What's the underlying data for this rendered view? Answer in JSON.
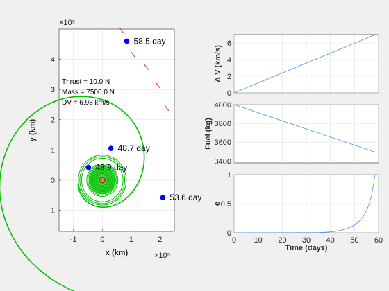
{
  "chart_data": [
    {
      "type": "line",
      "panel": "orbit",
      "xlabel": "x (km)",
      "ylabel": "y (km)",
      "xlim": [
        -1.5,
        2.5
      ],
      "ylim": [
        -1.7,
        5.0
      ],
      "xticks": [
        -1,
        0,
        1,
        2
      ],
      "yticks": [
        -1,
        0,
        1,
        2,
        3,
        4
      ],
      "x_exponent_label": "×10⁵",
      "y_exponent_label": "×10⁵",
      "grid": true,
      "colors": {
        "trajectory": "#00c000",
        "marker": "#0000ff",
        "thrust_arrow": "#ff0000",
        "planet": "#ff0000"
      },
      "info_text": [
        "Thrust = 10.0 N",
        "Mass = 7500.0 N",
        "DV = 6.98 km/s"
      ],
      "markers": [
        {
          "label": "58.5 day",
          "x": 0.85,
          "y": 4.6
        },
        {
          "label": "48.7 day",
          "x": 0.3,
          "y": 1.05
        },
        {
          "label": "43.9 day",
          "x": -0.48,
          "y": 0.42
        },
        {
          "label": "53.6 day",
          "x": 2.1,
          "y": -0.58
        }
      ]
    },
    {
      "type": "line",
      "panel": "delta-v",
      "ylabel": "Δ V (km/s)",
      "xlim": [
        0,
        60
      ],
      "ylim": [
        0,
        7
      ],
      "yticks": [
        0,
        2,
        4,
        6
      ],
      "grid": true,
      "x": [
        0,
        58.5
      ],
      "values": [
        0,
        6.98
      ]
    },
    {
      "type": "line",
      "panel": "fuel",
      "ylabel": "Fuel (kg)",
      "xlim": [
        0,
        60
      ],
      "ylim": [
        3380,
        4000
      ],
      "yticks": [
        3400,
        3600,
        3800,
        4000
      ],
      "grid": true,
      "x": [
        0,
        58.5
      ],
      "values": [
        4000,
        3495
      ]
    },
    {
      "type": "line",
      "panel": "eccentricity",
      "ylabel": "e",
      "xlabel": "Time (days)",
      "xlim": [
        0,
        60
      ],
      "ylim": [
        0,
        1
      ],
      "xticks": [
        0,
        10,
        20,
        30,
        40,
        50,
        60
      ],
      "yticks": [
        0,
        0.5,
        1
      ],
      "grid": true,
      "x": [
        0,
        30,
        35,
        38,
        40,
        42,
        44,
        46,
        48,
        50,
        52,
        54,
        55,
        56,
        57,
        58,
        58.5
      ],
      "values": [
        0,
        0.002,
        0.005,
        0.01,
        0.015,
        0.025,
        0.04,
        0.06,
        0.09,
        0.13,
        0.2,
        0.3,
        0.38,
        0.48,
        0.62,
        0.85,
        1.0
      ]
    }
  ]
}
